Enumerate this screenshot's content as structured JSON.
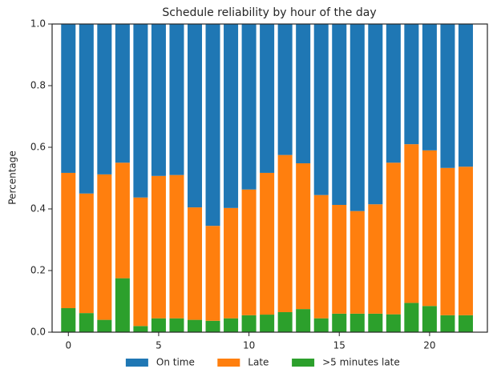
{
  "chart_data": {
    "type": "stacked_bar",
    "title": "Schedule reliability by hour of the day",
    "y_label": "Percentage",
    "x": [
      0,
      1,
      2,
      3,
      4,
      5,
      6,
      7,
      8,
      9,
      10,
      11,
      12,
      13,
      14,
      15,
      16,
      17,
      18,
      19,
      20,
      21,
      22
    ],
    "series": [
      {
        "name": "On time",
        "color": "#1f77b4",
        "values": [
          0.483,
          0.55,
          0.488,
          0.45,
          0.563,
          0.493,
          0.49,
          0.595,
          0.655,
          0.597,
          0.537,
          0.483,
          0.425,
          0.452,
          0.555,
          0.587,
          0.607,
          0.585,
          0.45,
          0.39,
          0.41,
          0.467,
          0.463
        ]
      },
      {
        "name": "Late",
        "color": "#ff7f0e",
        "values": [
          0.439,
          0.388,
          0.472,
          0.375,
          0.417,
          0.462,
          0.465,
          0.365,
          0.308,
          0.358,
          0.408,
          0.46,
          0.51,
          0.473,
          0.4,
          0.353,
          0.333,
          0.355,
          0.492,
          0.515,
          0.505,
          0.478,
          0.482
        ]
      },
      {
        "name": ">5 minutes late",
        "color": "#2ca02c",
        "values": [
          0.078,
          0.062,
          0.04,
          0.175,
          0.02,
          0.045,
          0.045,
          0.04,
          0.037,
          0.045,
          0.055,
          0.057,
          0.065,
          0.075,
          0.045,
          0.06,
          0.06,
          0.06,
          0.058,
          0.095,
          0.085,
          0.055,
          0.055
        ]
      }
    ],
    "xlim": [
      -0.9,
      23.2
    ],
    "xticks": [
      0,
      5,
      10,
      15,
      20
    ],
    "ylim": [
      0,
      1
    ],
    "yticks": [
      {
        "value": 0,
        "label": "0.0"
      },
      {
        "value": 0.2,
        "label": "0.2"
      },
      {
        "value": 0.4,
        "label": "0.4"
      },
      {
        "value": 0.6,
        "label": "0.6"
      },
      {
        "value": 0.8,
        "label": "0.8"
      },
      {
        "value": 1,
        "label": "1.0"
      }
    ],
    "legend": "bottom"
  }
}
